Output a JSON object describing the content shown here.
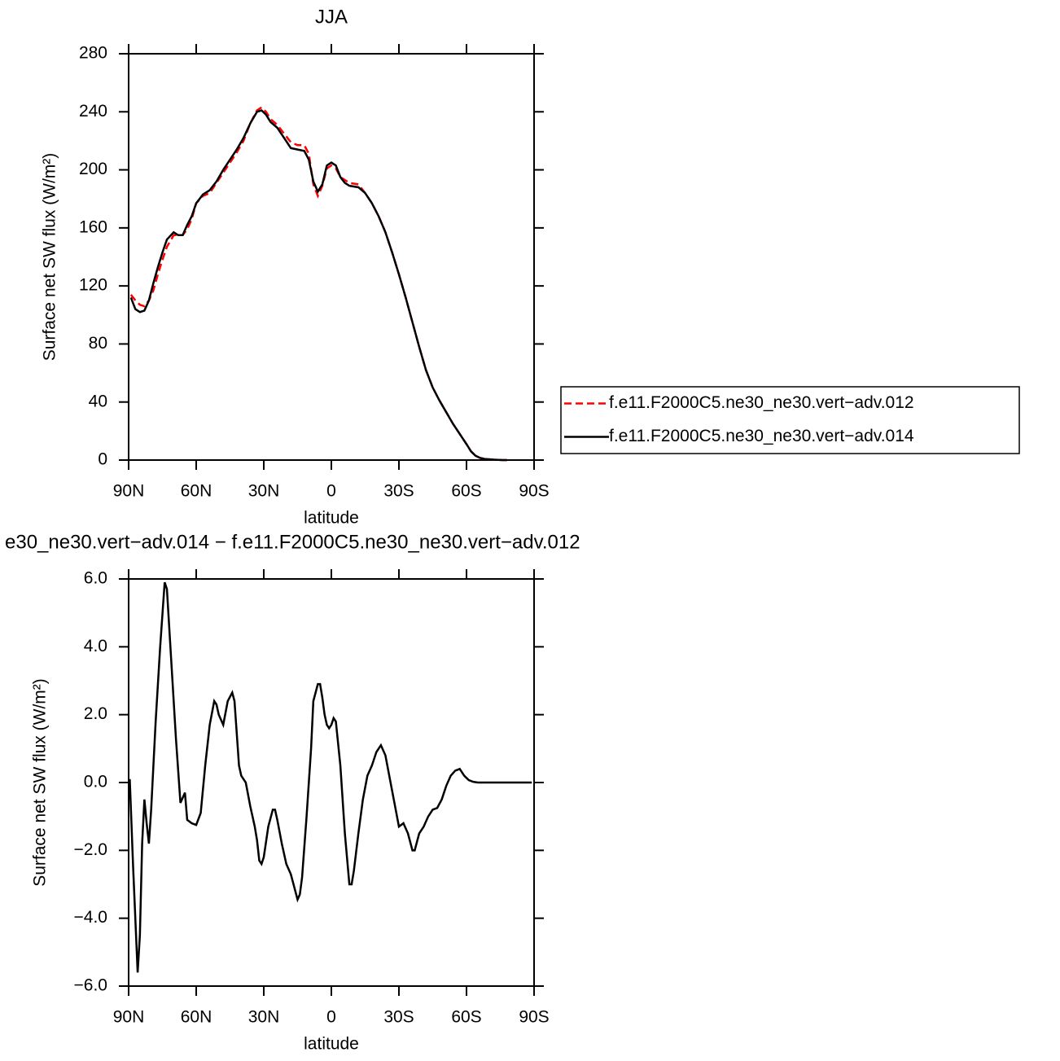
{
  "chart_data": [
    {
      "type": "line",
      "title": "JJA",
      "xlabel": "latitude",
      "ylabel": "Surface net SW flux (W/m²)",
      "x": [
        89,
        87,
        85,
        83,
        81,
        79,
        77,
        75,
        73,
        70,
        68,
        66,
        64,
        62,
        60,
        57,
        54,
        51,
        48,
        45,
        42,
        39,
        36,
        33,
        31,
        29,
        27,
        24,
        21,
        18,
        15,
        12,
        10,
        8,
        6,
        4,
        2,
        0,
        -2,
        -4,
        -6,
        -8,
        -12,
        -15,
        -18,
        -21,
        -24,
        -27,
        -30,
        -33,
        -36,
        -39,
        -42,
        -45,
        -48,
        -51,
        -54,
        -57,
        -60,
        -62,
        -64,
        -66,
        -68,
        -72,
        -76,
        -78
      ],
      "series": [
        {
          "name": "f.e11.F2000C5.ne30_ne30.vert−adv.012",
          "color": "#ff0000",
          "style": "dashed",
          "values": [
            114,
            110,
            107,
            106,
            110,
            117,
            128,
            138,
            147,
            155,
            155,
            155,
            159,
            166,
            177,
            182,
            184,
            191,
            198,
            205,
            212,
            220,
            232,
            241,
            243,
            240,
            235,
            231,
            225,
            219,
            217,
            217,
            211,
            190,
            182,
            189,
            201,
            203,
            201,
            195,
            193,
            191,
            190,
            184,
            177,
            168,
            157,
            143,
            128,
            112,
            95,
            78,
            62,
            50,
            41,
            33,
            25,
            18,
            11,
            6,
            3,
            1.5,
            0.8,
            0.3,
            0,
            0
          ]
        },
        {
          "name": "f.e11.F2000C5.ne30_ne30.vert−adv.014",
          "color": "#000000",
          "style": "solid",
          "values": [
            112,
            104,
            102,
            103,
            110,
            122,
            133,
            143,
            152,
            157,
            155,
            155,
            162,
            168,
            177,
            183,
            186,
            192,
            200,
            207,
            214,
            222,
            232,
            240,
            241,
            238,
            233,
            229,
            222,
            215,
            214,
            213,
            207,
            192,
            185,
            190,
            203,
            205,
            203,
            195,
            191,
            189,
            188,
            184,
            177,
            168,
            157,
            143,
            128,
            112,
            95,
            78,
            62,
            50,
            41,
            33,
            25,
            18,
            11,
            6,
            3,
            1.5,
            0.8,
            0.3,
            0,
            0
          ]
        }
      ],
      "legend": "right",
      "xlim": [
        90,
        -90
      ],
      "xticks": [
        {
          "value": 90,
          "label": "90N"
        },
        {
          "value": 60,
          "label": "60N"
        },
        {
          "value": 30,
          "label": "30N"
        },
        0,
        {
          "value": -30,
          "label": "30S"
        },
        {
          "value": -60,
          "label": "60S"
        },
        {
          "value": -90,
          "label": "90S"
        }
      ],
      "ylim": [
        0,
        280
      ],
      "yticks": [
        0,
        40,
        80,
        120,
        160,
        200,
        240,
        280
      ]
    },
    {
      "type": "line",
      "title": "e30_ne30.vert−adv.014 − f.e11.F2000C5.ne30_ne30.vert−adv.012",
      "xlabel": "latitude",
      "ylabel": "Surface net SW flux (W/m²)",
      "x": [
        89.5,
        88,
        86,
        85,
        84,
        83,
        82,
        81,
        80,
        78,
        76,
        74,
        73,
        71,
        69,
        67,
        65,
        64,
        62,
        60,
        58,
        56,
        54,
        52,
        51,
        50,
        48,
        46,
        44,
        43,
        41,
        40,
        38,
        36,
        34,
        33,
        32,
        31,
        30,
        28,
        26,
        25,
        24,
        22,
        20,
        18,
        16,
        15,
        14,
        13,
        11,
        9,
        8,
        6,
        5,
        4,
        3,
        2,
        1,
        0,
        -1,
        -2,
        -4,
        -6,
        -8,
        -9,
        -10,
        -12,
        -14,
        -16,
        -18,
        -20,
        -22,
        -24,
        -26,
        -28,
        -30,
        -32,
        -34,
        -36,
        -37,
        -39,
        -41,
        -43,
        -45,
        -47,
        -49,
        -51,
        -53,
        -55,
        -57,
        -59,
        -61,
        -63,
        -65,
        -70,
        -80,
        -89
      ],
      "color": "#000000",
      "values": [
        0.1,
        -2.5,
        -5.6,
        -4.5,
        -1.8,
        -0.5,
        -1.2,
        -1.8,
        -0.8,
        1.8,
        4,
        5.9,
        5.7,
        3.5,
        1.3,
        -0.6,
        -0.3,
        -1.1,
        -1.2,
        -1.25,
        -0.9,
        0.5,
        1.7,
        2.4,
        2.3,
        2.0,
        1.7,
        2.4,
        2.65,
        2.4,
        0.5,
        0.2,
        0,
        -0.7,
        -1.3,
        -1.7,
        -2.3,
        -2.4,
        -2.2,
        -1.3,
        -0.8,
        -0.8,
        -1.1,
        -1.8,
        -2.4,
        -2.7,
        -3.2,
        -3.45,
        -3.3,
        -2.8,
        -1,
        1.0,
        2.4,
        2.9,
        2.9,
        2.5,
        2,
        1.7,
        1.6,
        1.7,
        1.9,
        1.8,
        0.5,
        -1.5,
        -3,
        -3,
        -2.6,
        -1.5,
        -0.5,
        0.2,
        0.5,
        0.9,
        1.1,
        0.8,
        0.1,
        -0.6,
        -1.3,
        -1.2,
        -1.5,
        -2,
        -2,
        -1.5,
        -1.3,
        -1.0,
        -0.8,
        -0.75,
        -0.5,
        -0.1,
        0.2,
        0.35,
        0.4,
        0.2,
        0.07,
        0.02,
        0,
        0,
        0,
        0
      ],
      "xlim": [
        90,
        -90
      ],
      "xticks": [
        {
          "value": 90,
          "label": "90N"
        },
        {
          "value": 60,
          "label": "60N"
        },
        {
          "value": 30,
          "label": "30N"
        },
        0,
        {
          "value": -30,
          "label": "30S"
        },
        {
          "value": -60,
          "label": "60S"
        },
        {
          "value": -90,
          "label": "90S"
        }
      ],
      "ylim": [
        -6,
        6
      ],
      "yticks": [
        {
          "value": -6,
          "label": "−6.0"
        },
        {
          "value": -4,
          "label": "−4.0"
        },
        {
          "value": -2,
          "label": "−2.0"
        },
        {
          "value": 0,
          "label": "0.0"
        },
        {
          "value": 2,
          "label": "2.0"
        },
        {
          "value": 4,
          "label": "4.0"
        },
        {
          "value": 6,
          "label": "6.0"
        }
      ]
    }
  ]
}
